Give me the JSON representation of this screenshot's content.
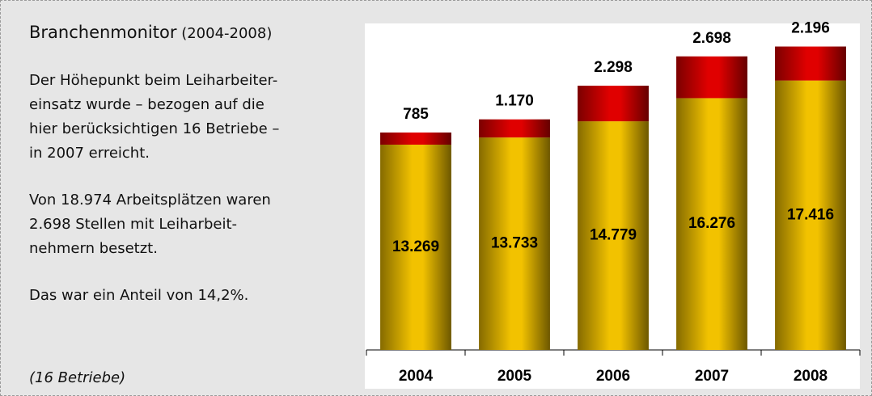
{
  "sidebar": {
    "title": "Branchenmonitor",
    "title_years": "(2004-2008)",
    "paragraphs": [
      [
        "Der Höhepunkt beim Leiharbeiter-",
        "einsatz wurde – bezogen auf die",
        "hier berücksichtigen 16 Betriebe –",
        "in 2007 erreicht."
      ],
      [
        "Von 18.974 Arbeitsplätzen waren",
        "2.698 Stellen mit Leiharbeit-",
        "nehmern besetzt."
      ],
      [
        "Das war ein Anteil von 14,2%."
      ]
    ],
    "footnote": "(16 Betriebe)"
  },
  "chart_data": {
    "type": "stacked_bar",
    "categories": [
      "2004",
      "2005",
      "2006",
      "2007",
      "2008"
    ],
    "series": [
      {
        "color": "#f2c200",
        "values": [
          13269,
          13733,
          14779,
          16276,
          17416
        ],
        "value_labels": [
          "13.269",
          "13.733",
          "14.779",
          "16.276",
          "17.416"
        ]
      },
      {
        "color": "#e00000",
        "values": [
          785,
          1170,
          2298,
          2698,
          2196
        ],
        "value_labels": [
          "785",
          "1.170",
          "2.298",
          "2.698",
          "2.196"
        ]
      }
    ],
    "ylim": [
      0,
      21000
    ]
  }
}
